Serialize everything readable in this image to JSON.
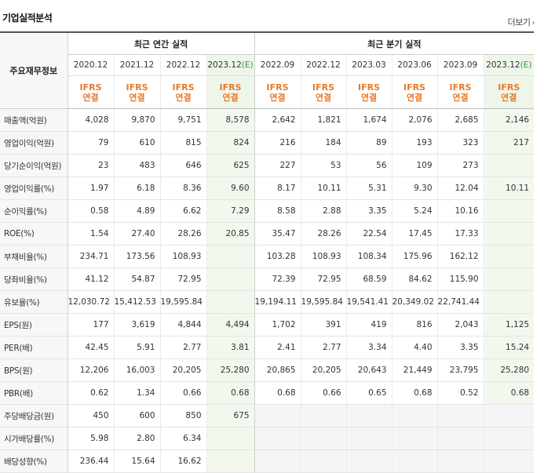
{
  "header": {
    "title": "기업실적분석",
    "more": "더보기",
    "more_icon": "chevron-right-icon"
  },
  "table": {
    "corner": "주요재무정보",
    "groups": {
      "annual": "최근 연간 실적",
      "quarter": "최근 분기 실적"
    },
    "periods": [
      "2020.12",
      "2021.12",
      "2022.12",
      "2023.12",
      "2022.09",
      "2022.12",
      "2023.03",
      "2023.06",
      "2023.09",
      "2023.12"
    ],
    "estimate_mark": "(E)",
    "ifrs": "IFRS",
    "consol": "연결",
    "rows": [
      {
        "label": "매출액(억원)",
        "values": [
          "4,028",
          "9,870",
          "9,751",
          "8,578",
          "2,642",
          "1,821",
          "1,674",
          "2,076",
          "2,685",
          "2,146"
        ]
      },
      {
        "label": "영업이익(억원)",
        "values": [
          "79",
          "610",
          "815",
          "824",
          "216",
          "184",
          "89",
          "193",
          "323",
          "217"
        ]
      },
      {
        "label": "당기순이익(억원)",
        "values": [
          "23",
          "483",
          "646",
          "625",
          "227",
          "53",
          "56",
          "109",
          "273",
          ""
        ]
      },
      {
        "label": "영업이익률(%)",
        "values": [
          "1.97",
          "6.18",
          "8.36",
          "9.60",
          "8.17",
          "10.11",
          "5.31",
          "9.30",
          "12.04",
          "10.11"
        ]
      },
      {
        "label": "순이익률(%)",
        "values": [
          "0.58",
          "4.89",
          "6.62",
          "7.29",
          "8.58",
          "2.88",
          "3.35",
          "5.24",
          "10.16",
          ""
        ]
      },
      {
        "label": "ROE(%)",
        "values": [
          "1.54",
          "27.40",
          "28.26",
          "20.85",
          "35.47",
          "28.26",
          "22.54",
          "17.45",
          "17.33",
          ""
        ]
      },
      {
        "label": "부채비율(%)",
        "values": [
          "234.71",
          "173.56",
          "108.93",
          "",
          "103.28",
          "108.93",
          "108.34",
          "175.96",
          "162.12",
          ""
        ]
      },
      {
        "label": "당좌비율(%)",
        "values": [
          "41.12",
          "54.87",
          "72.95",
          "",
          "72.39",
          "72.95",
          "68.59",
          "84.62",
          "115.90",
          ""
        ]
      },
      {
        "label": "유보율(%)",
        "values": [
          "12,030.72",
          "15,412.53",
          "19,595.84",
          "",
          "19,194.11",
          "19,595.84",
          "19,541.41",
          "20,349.02",
          "22,741.44",
          ""
        ]
      },
      {
        "label": "EPS(원)",
        "values": [
          "177",
          "3,619",
          "4,844",
          "4,494",
          "1,702",
          "391",
          "419",
          "816",
          "2,043",
          "1,125"
        ]
      },
      {
        "label": "PER(배)",
        "values": [
          "42.45",
          "5.91",
          "2.77",
          "3.81",
          "2.41",
          "2.77",
          "3.34",
          "4.40",
          "3.35",
          "15.24"
        ]
      },
      {
        "label": "BPS(원)",
        "values": [
          "12,206",
          "16,003",
          "20,205",
          "25,280",
          "20,865",
          "20,205",
          "20,643",
          "21,449",
          "23,795",
          "25,280"
        ]
      },
      {
        "label": "PBR(배)",
        "values": [
          "0.62",
          "1.34",
          "0.66",
          "0.68",
          "0.68",
          "0.66",
          "0.65",
          "0.68",
          "0.52",
          "0.68"
        ]
      },
      {
        "label": "주당배당금(원)",
        "values": [
          "450",
          "600",
          "850",
          "675",
          "",
          "",
          "",
          "",
          "",
          ""
        ]
      },
      {
        "label": "시가배당률(%)",
        "values": [
          "5.98",
          "2.80",
          "6.34",
          "",
          "",
          "",
          "",
          "",
          "",
          ""
        ]
      },
      {
        "label": "배당성향(%)",
        "values": [
          "236.44",
          "15.64",
          "16.62",
          "",
          "",
          "",
          "",
          "",
          "",
          ""
        ]
      }
    ]
  }
}
